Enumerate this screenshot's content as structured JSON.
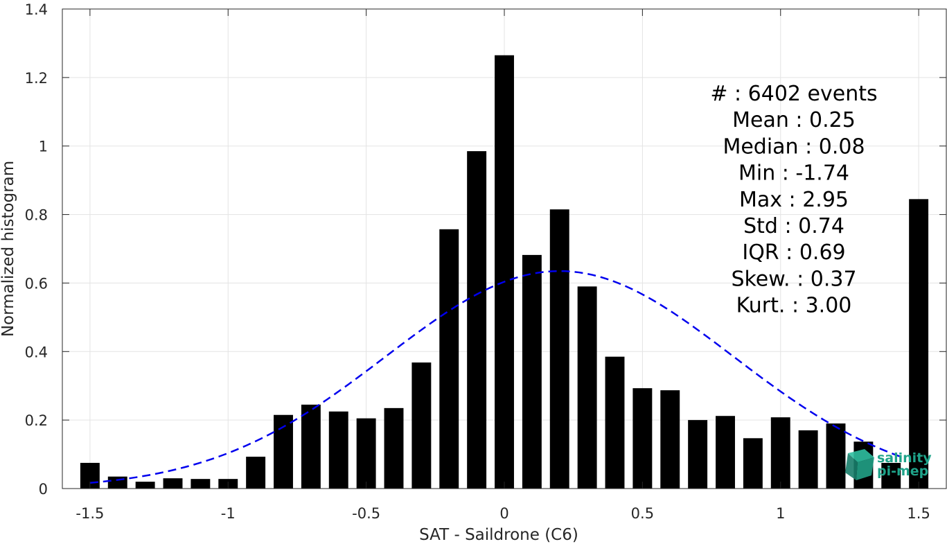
{
  "chart_data": {
    "type": "bar",
    "xlabel": "SAT - Saildrone (C6)",
    "ylabel": "Normalized histogram",
    "xlim": [
      -1.6,
      1.6
    ],
    "ylim": [
      0,
      1.4
    ],
    "xticks": [
      -1.5,
      -1,
      -0.5,
      0,
      0.5,
      1,
      1.5
    ],
    "xtick_labels": [
      "-1.5",
      "-1",
      "-0.5",
      "0",
      "0.5",
      "1",
      "1.5"
    ],
    "yticks": [
      0,
      0.2,
      0.4,
      0.6,
      0.8,
      1,
      1.2,
      1.4
    ],
    "ytick_labels": [
      "0",
      "0.2",
      "0.4",
      "0.6",
      "0.8",
      "1",
      "1.2",
      "1.4"
    ],
    "grid": true,
    "bar_color": "#000000",
    "fit_color": "#0000ee",
    "bins": [
      -1.5,
      -1.4,
      -1.3,
      -1.2,
      -1.1,
      -1.0,
      -0.9,
      -0.8,
      -0.7,
      -0.6,
      -0.5,
      -0.4,
      -0.3,
      -0.2,
      -0.1,
      0.0,
      0.1,
      0.2,
      0.3,
      0.4,
      0.5,
      0.6,
      0.7,
      0.8,
      0.9,
      1.0,
      1.1,
      1.2,
      1.3,
      1.4,
      1.5
    ],
    "values": [
      0.075,
      0.035,
      0.02,
      0.03,
      0.028,
      0.028,
      0.093,
      0.215,
      0.245,
      0.225,
      0.205,
      0.235,
      0.368,
      0.757,
      0.985,
      1.265,
      0.682,
      0.815,
      0.59,
      0.385,
      0.293,
      0.287,
      0.2,
      0.212,
      0.147,
      0.208,
      0.17,
      0.19,
      0.137,
      0.075,
      0.845
    ],
    "fit": {
      "type": "gaussian",
      "style": "dashed",
      "x_range": [
        -1.5,
        1.45
      ],
      "mean": 0.2,
      "std": 0.63,
      "peak": 0.635
    },
    "stats": [
      {
        "label": "#  : 6402 events"
      },
      {
        "label": "Mean : 0.25"
      },
      {
        "label": "Median : 0.08"
      },
      {
        "label": "Min : -1.74"
      },
      {
        "label": "Max : 2.95"
      },
      {
        "label": "Std : 0.74"
      },
      {
        "label": "IQR : 0.69"
      },
      {
        "label": "Skew. : 0.37"
      },
      {
        "label": "Kurt. : 3.00"
      }
    ]
  },
  "logo": {
    "line1": "salinity",
    "line2": "pi-mep",
    "color": "#1fa38a"
  }
}
